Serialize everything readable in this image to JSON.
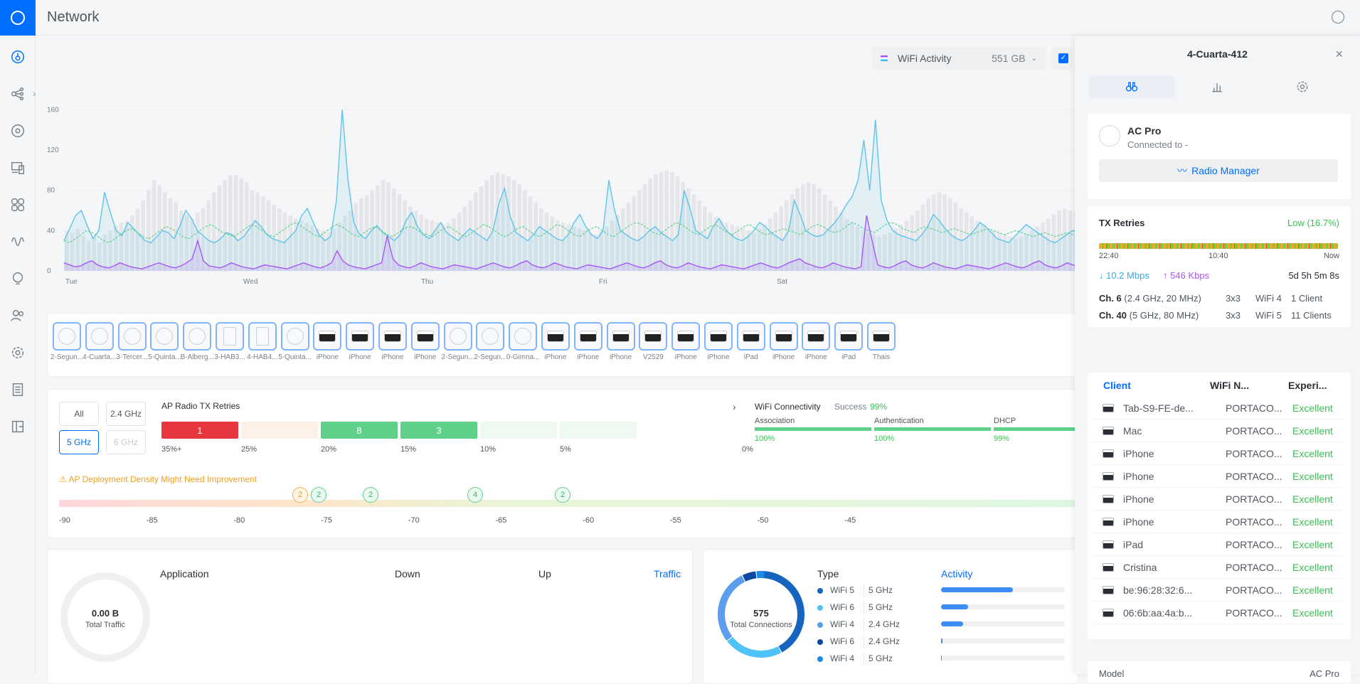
{
  "app": {
    "title": "Network"
  },
  "toolbar": {
    "activity_label": "WiFi Activity",
    "activity_value": "551 GB"
  },
  "chart_data": {
    "type": "line",
    "x_ticks": [
      "Tue",
      "Wed",
      "Thu",
      "Fri",
      "Sat"
    ],
    "y_ticks": [
      0,
      40,
      80,
      120,
      160
    ],
    "ylim": [
      0,
      180
    ],
    "bars": [
      40,
      38,
      42,
      35,
      30,
      33,
      28,
      36,
      40,
      45,
      48,
      50,
      55,
      62,
      70,
      80,
      90,
      85,
      78,
      72,
      68,
      60,
      55,
      52,
      58,
      62,
      70,
      78,
      85,
      90,
      95,
      95,
      92,
      88,
      80,
      78,
      74,
      70,
      66,
      62,
      58,
      55,
      52,
      50,
      48,
      45,
      42,
      40,
      38,
      42,
      48,
      55,
      60,
      68,
      72,
      75,
      80,
      85,
      90,
      88,
      82,
      76,
      70,
      64,
      60,
      56,
      52,
      50,
      48,
      46,
      48,
      52,
      58,
      64,
      70,
      78,
      84,
      90,
      95,
      98,
      96,
      94,
      90,
      86,
      80,
      74,
      68,
      62,
      58,
      54,
      50,
      48,
      46,
      44,
      42,
      40,
      38,
      36,
      40,
      44,
      50,
      56,
      62,
      68,
      74,
      80,
      86,
      92,
      96,
      98,
      100,
      98,
      94,
      88,
      82,
      76,
      70,
      64,
      58,
      54,
      50,
      48,
      46,
      44,
      42,
      40,
      38,
      42,
      46,
      52,
      58,
      64,
      70,
      76,
      82,
      86,
      88,
      86,
      82,
      76,
      70,
      64,
      58,
      52,
      48,
      44,
      40,
      38,
      36,
      34,
      36,
      38,
      42,
      46,
      50,
      55,
      60,
      66,
      72,
      76,
      78,
      76,
      72,
      68,
      62,
      58,
      54,
      50,
      46,
      42,
      40,
      38,
      36,
      34,
      32,
      34,
      36,
      40,
      44,
      48,
      52,
      56,
      60,
      62,
      60,
      58
    ],
    "series": [
      {
        "values": [
          30,
          42,
          55,
          60,
          45,
          32,
          40,
          78,
          58,
          40,
          35,
          48,
          42,
          36,
          30,
          28,
          34,
          40,
          38,
          32,
          45,
          60,
          52,
          40,
          35,
          30,
          28,
          32,
          38,
          36,
          30,
          34,
          42,
          50,
          44,
          36,
          32,
          30,
          28,
          34,
          40,
          55,
          62,
          48,
          36,
          30,
          34,
          70,
          160,
          90,
          48,
          36,
          32,
          40,
          45,
          38,
          34,
          30,
          36,
          50,
          58,
          44,
          36,
          32,
          40,
          48,
          38,
          34,
          30,
          36,
          42,
          38,
          34,
          30,
          40,
          66,
          82,
          54,
          38,
          34,
          30,
          36,
          44,
          40,
          36,
          32,
          30,
          36,
          48,
          56,
          44,
          36,
          32,
          40,
          90,
          60,
          40,
          36,
          32,
          30,
          34,
          40,
          44,
          38,
          34,
          30,
          36,
          80,
          62,
          40,
          36,
          32,
          44,
          52,
          42,
          36,
          32,
          30,
          34,
          40,
          48,
          44,
          38,
          34,
          30,
          40,
          70,
          56,
          40,
          36,
          34,
          36,
          42,
          48,
          56,
          66,
          74,
          90,
          130,
          80,
          150,
          70,
          50,
          40,
          36,
          34,
          32,
          30,
          36,
          44,
          56,
          50,
          42,
          36,
          32,
          30,
          34,
          40,
          48,
          44,
          38,
          32,
          30,
          28,
          34,
          40,
          46,
          42,
          38,
          34,
          30,
          28,
          32,
          36,
          40,
          38
        ]
      },
      {
        "values": [
          30,
          28,
          32,
          36,
          40,
          38,
          34,
          30,
          28,
          32,
          36,
          40,
          42,
          38,
          34,
          32,
          36,
          40,
          44,
          42,
          38,
          34,
          32,
          36,
          40,
          44,
          46,
          42,
          38,
          36,
          34,
          38,
          42,
          46,
          44,
          40,
          36,
          34,
          38,
          42,
          46,
          48,
          44,
          40,
          36,
          34,
          38,
          42,
          46,
          44,
          40,
          36,
          34,
          38,
          42,
          44,
          40,
          36,
          34,
          38,
          42,
          44,
          42,
          38,
          36,
          34,
          38,
          42,
          44,
          40,
          36,
          34,
          38,
          42,
          46,
          44,
          40,
          36,
          34,
          38,
          42,
          44,
          40,
          36,
          34,
          38,
          42,
          46,
          44,
          40,
          36,
          34,
          38,
          42,
          44,
          40,
          36,
          34,
          38,
          42,
          46,
          48,
          46,
          42,
          38,
          36,
          40,
          44,
          48,
          46,
          42,
          38,
          36,
          40,
          44,
          46,
          42,
          38,
          36,
          40,
          44,
          46,
          42,
          38,
          36,
          38,
          40,
          42,
          40,
          38,
          36,
          40,
          44,
          46,
          44,
          40,
          38,
          40,
          44,
          48,
          46,
          42,
          40,
          38,
          42,
          46,
          48,
          46,
          42,
          40,
          38,
          42,
          44,
          42,
          40,
          38,
          40,
          42,
          40,
          38,
          36,
          38,
          40,
          42,
          40,
          38,
          36,
          38,
          40,
          38,
          36,
          34,
          36,
          38,
          36,
          34,
          36,
          38,
          36,
          34
        ]
      },
      {
        "values": [
          8,
          6,
          4,
          5,
          8,
          10,
          6,
          4,
          3,
          5,
          8,
          6,
          4,
          3,
          2,
          4,
          6,
          8,
          6,
          4,
          3,
          5,
          8,
          12,
          30,
          10,
          5,
          4,
          3,
          5,
          8,
          6,
          4,
          3,
          2,
          4,
          6,
          5,
          4,
          3,
          2,
          4,
          6,
          8,
          6,
          4,
          3,
          5,
          8,
          20,
          10,
          6,
          4,
          3,
          2,
          4,
          6,
          8,
          35,
          12,
          6,
          4,
          3,
          5,
          8,
          6,
          4,
          3,
          2,
          4,
          6,
          5,
          4,
          3,
          2,
          4,
          6,
          8,
          6,
          4,
          3,
          5,
          8,
          10,
          6,
          4,
          3,
          5,
          8,
          6,
          4,
          3,
          2,
          4,
          6,
          5,
          4,
          3,
          2,
          4,
          6,
          8,
          6,
          4,
          3,
          5,
          8,
          10,
          6,
          4,
          3,
          5,
          8,
          6,
          4,
          3,
          2,
          4,
          6,
          5,
          4,
          3,
          2,
          4,
          6,
          8,
          6,
          4,
          3,
          5,
          8,
          10,
          12,
          8,
          6,
          4,
          3,
          5,
          8,
          6,
          4,
          3,
          2,
          4,
          55,
          30,
          6,
          4,
          3,
          5,
          8,
          10,
          6,
          4,
          3,
          5,
          8,
          6,
          4,
          3,
          2,
          4,
          6,
          5,
          4,
          3,
          2,
          4,
          6,
          8,
          6,
          4,
          3,
          5,
          8,
          10,
          6,
          4,
          3,
          5,
          8,
          6,
          4
        ]
      }
    ],
    "colors": {
      "bars": "#e4e6e9",
      "s1": "#5ec4ec",
      "s2": "#5ed08a",
      "s3": "#a855f7"
    }
  },
  "devices": [
    {
      "label": "2-Segun...",
      "type": "ap"
    },
    {
      "label": "4-Cuarta...",
      "type": "ap"
    },
    {
      "label": "3-Tercer...",
      "type": "ap"
    },
    {
      "label": "5-Quinta...",
      "type": "ap"
    },
    {
      "label": "B-Alberg...",
      "type": "ap"
    },
    {
      "label": "3-HAB3...",
      "type": "sq"
    },
    {
      "label": "4-HAB4...",
      "type": "sq"
    },
    {
      "label": "5-Quinta...",
      "type": "ap"
    },
    {
      "label": "iPhone",
      "type": "ph"
    },
    {
      "label": "iPhone",
      "type": "ph"
    },
    {
      "label": "iPhone",
      "type": "ph"
    },
    {
      "label": "iPhone",
      "type": "ph"
    },
    {
      "label": "2-Segun...",
      "type": "ap"
    },
    {
      "label": "2-Segun...",
      "type": "ap"
    },
    {
      "label": "0-Gimna...",
      "type": "ap"
    },
    {
      "label": "iPhone",
      "type": "ph"
    },
    {
      "label": "iPhone",
      "type": "ph"
    },
    {
      "label": "iPhone",
      "type": "ph"
    },
    {
      "label": "V2529",
      "type": "ph"
    },
    {
      "label": "iPhone",
      "type": "ph"
    },
    {
      "label": "iPhone",
      "type": "ph"
    },
    {
      "label": "iPad",
      "type": "ph"
    },
    {
      "label": "iPhone",
      "type": "ph"
    },
    {
      "label": "iPhone",
      "type": "ph"
    },
    {
      "label": "iPad",
      "type": "ph"
    },
    {
      "label": "Thais",
      "type": "ph"
    }
  ],
  "radio": {
    "bands": [
      "All",
      "2.4 GHz",
      "5 GHz",
      "6 GHz"
    ],
    "title": "AP Radio TX Retries",
    "segments": [
      {
        "value": "1",
        "color": "#e8363f",
        "label": "35%+"
      },
      {
        "value": "",
        "color": "#fdf0e6",
        "label": "25%"
      },
      {
        "value": "8",
        "color": "#5ed08a",
        "label": "20%"
      },
      {
        "value": "3",
        "color": "#5ed08a",
        "label": "15%"
      },
      {
        "value": "",
        "color": "#eefaf1",
        "label": "10%"
      },
      {
        "value": "",
        "color": "#eefaf1",
        "label": "5%"
      }
    ],
    "last_label": "0%",
    "connectivity_title": "WiFi Connectivity",
    "success_label": "Success",
    "success_value": "99%",
    "conn": [
      {
        "name": "Association",
        "value": "100%"
      },
      {
        "name": "Authentication",
        "value": "100%"
      },
      {
        "name": "DHCP",
        "value": "99%"
      }
    ],
    "warning": "AP Deployment Density Might Need Improvement",
    "pins": [
      {
        "v": "2",
        "c": "org"
      },
      {
        "v": "2",
        "c": "grn"
      },
      {
        "v": "2",
        "c": "grn"
      },
      {
        "v": "4",
        "c": "grn"
      },
      {
        "v": "2",
        "c": "grn"
      }
    ],
    "rssi_ticks": [
      "-90",
      "-85",
      "-80",
      "-75",
      "-70",
      "-65",
      "-60",
      "-55",
      "-50",
      "-45"
    ]
  },
  "app_card": {
    "traffic_value": "0.00 B",
    "traffic_label": "Total Traffic",
    "col_app": "Application",
    "col_down": "Down",
    "col_up": "Up",
    "col_traffic": "Traffic"
  },
  "type_card": {
    "total": "575",
    "total_label": "Total Connections",
    "col_type": "Type",
    "col_activity": "Activity",
    "rows": [
      {
        "name": "WiFi 5",
        "band": "5 GHz",
        "color": "#1565c0",
        "activity": 0.58
      },
      {
        "name": "WiFi 6",
        "band": "5 GHz",
        "color": "#4fc3f7",
        "activity": 0.22
      },
      {
        "name": "WiFi 4",
        "band": "2.4 GHz",
        "color": "#5c9ded",
        "activity": 0.18
      },
      {
        "name": "WiFi 6",
        "band": "2.4 GHz",
        "color": "#0d47a1",
        "activity": 0.01
      },
      {
        "name": "WiFi 4",
        "band": "5 GHz",
        "color": "#1e88e5",
        "activity": 0.0
      }
    ]
  },
  "panel": {
    "title": "4-Cuarta-412",
    "device_name": "AC Pro",
    "connected": "Connected to -",
    "radio_manager": "Radio Manager",
    "tx_title": "TX Retries",
    "tx_status": "Low (16.7%)",
    "tx_t0": "22:40",
    "tx_t1": "10:40",
    "tx_t2": "Now",
    "down": "↓ 10.2 Mbps",
    "up": "↑ 546 Kbps",
    "uptime": "5d 5h 5m 8s",
    "channels": [
      {
        "ch": "Ch. 6",
        "detail": "(2.4 GHz, 20 MHz)",
        "mimo": "3x3",
        "std": "WiFi 4",
        "clients": "1 Client"
      },
      {
        "ch": "Ch. 40",
        "detail": "(5 GHz, 80 MHz)",
        "mimo": "3x3",
        "std": "WiFi 5",
        "clients": "11 Clients"
      }
    ],
    "client_headers": [
      "Client",
      "WiFi N...",
      "Experi..."
    ],
    "clients": [
      {
        "name": "Tab-S9-FE-de...",
        "net": "PORTACO...",
        "exp": "Excellent"
      },
      {
        "name": "Mac",
        "net": "PORTACO...",
        "exp": "Excellent"
      },
      {
        "name": "iPhone",
        "net": "PORTACO...",
        "exp": "Excellent"
      },
      {
        "name": "iPhone",
        "net": "PORTACO...",
        "exp": "Excellent"
      },
      {
        "name": "iPhone",
        "net": "PORTACO...",
        "exp": "Excellent"
      },
      {
        "name": "iPhone",
        "net": "PORTACO...",
        "exp": "Excellent"
      },
      {
        "name": "iPad",
        "net": "PORTACO...",
        "exp": "Excellent"
      },
      {
        "name": "Cristina",
        "net": "PORTACO...",
        "exp": "Excellent"
      },
      {
        "name": "be:96:28:32:6...",
        "net": "PORTACO...",
        "exp": "Excellent"
      },
      {
        "name": "06:6b:aa:4a:b...",
        "net": "PORTACO...",
        "exp": "Excellent"
      }
    ],
    "model_label": "Model",
    "model_value": "AC Pro"
  }
}
